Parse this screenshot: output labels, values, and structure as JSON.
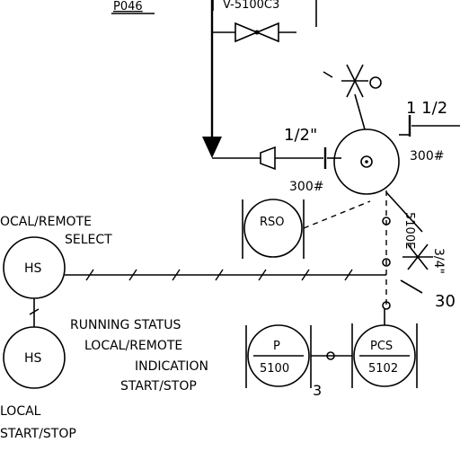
{
  "labels": {
    "top_partial_tag": "P046",
    "top_valve_tag": "V-5100C3",
    "size_half_inch": "1/2\"",
    "size_one_half": "1 1/2",
    "rating_300_a": "300#",
    "rating_300_b": "300#",
    "side_size": "3/4\"",
    "vert_tag": "5100E",
    "ref_30": "30",
    "ref_3": "3",
    "local_remote_select_1": "OCAL/REMOTE",
    "local_remote_select_2": "SELECT",
    "local_start_stop_1": "LOCAL",
    "local_start_stop_2": "START/STOP",
    "indication_1": "RUNNING STATUS",
    "indication_2": "LOCAL/REMOTE",
    "indication_3": "INDICATION",
    "indication_4": "START/STOP"
  },
  "instruments": {
    "hs_select": "HS",
    "hs_local": "HS",
    "rso": "RSO",
    "p_letters": "P",
    "p_number": "5100",
    "pcs_letters": "PCS",
    "pcs_number": "5102"
  }
}
